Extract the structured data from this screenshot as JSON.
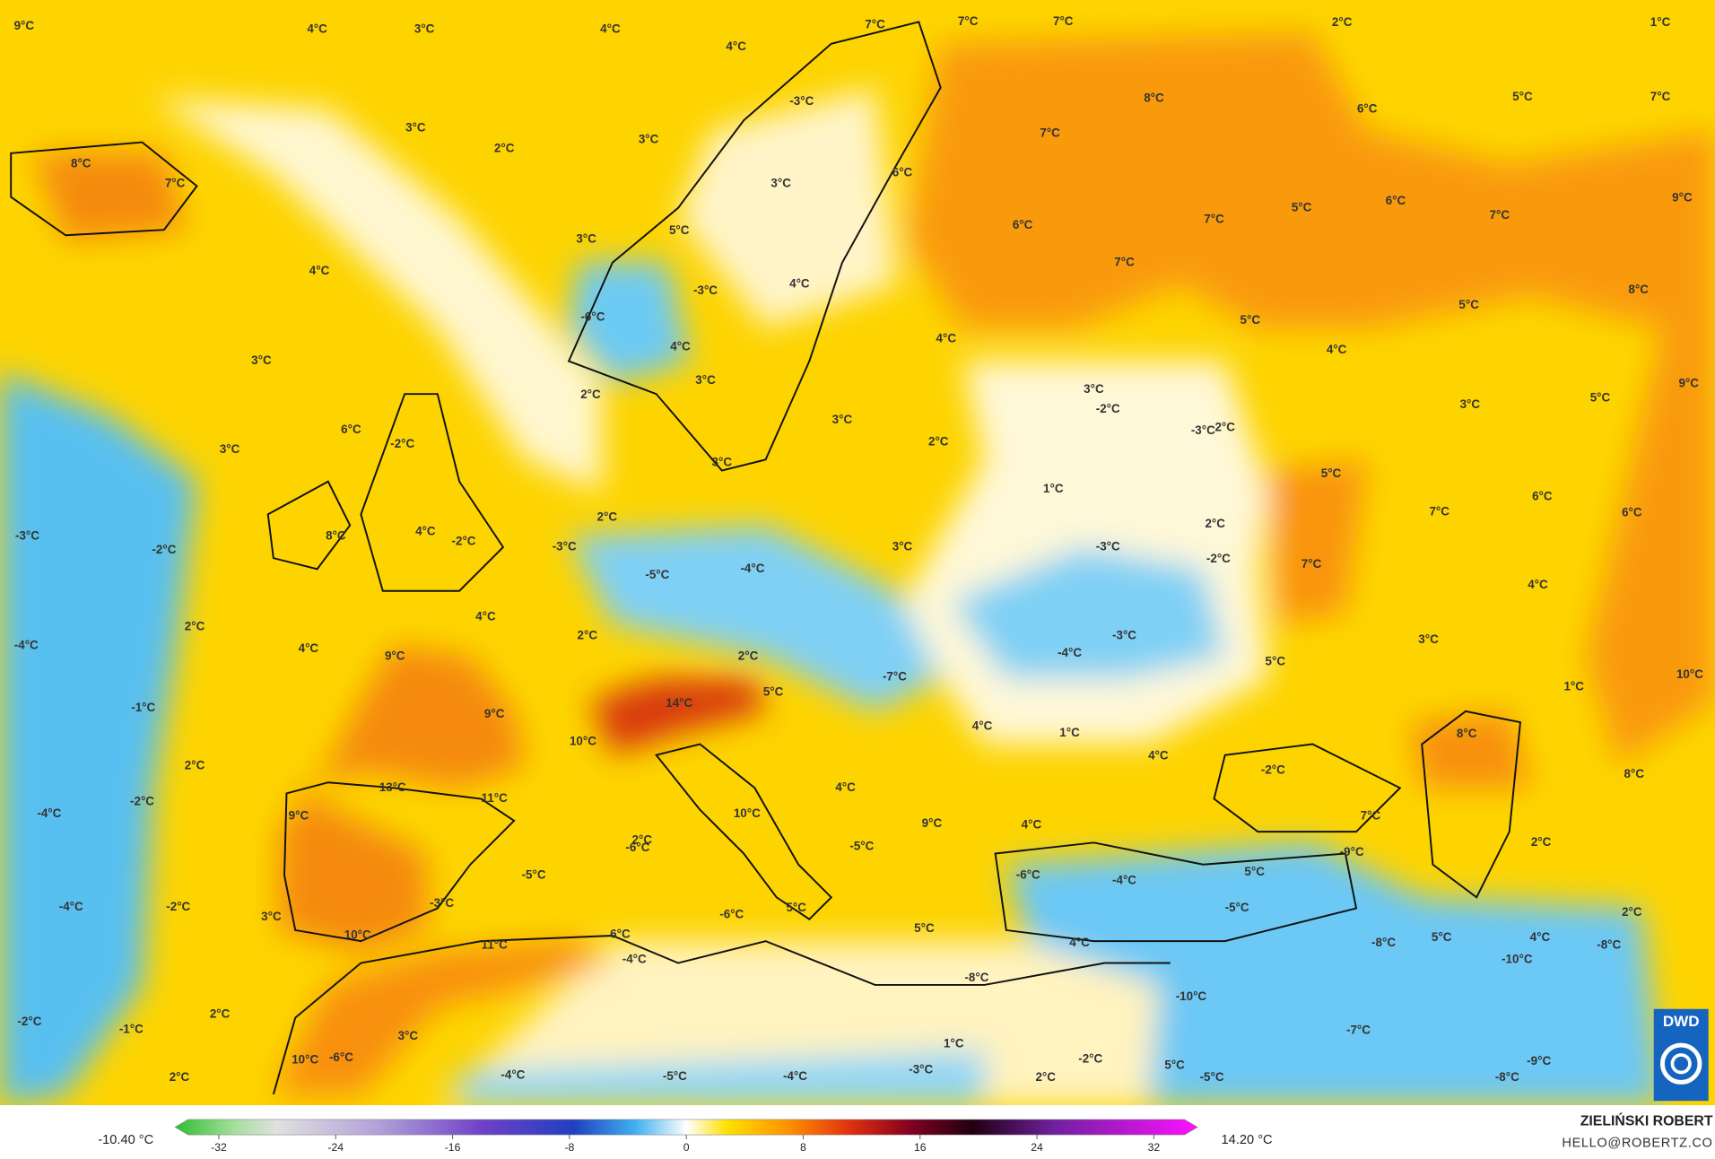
{
  "labels": [
    "9°C",
    "4°C",
    "3°C",
    "4°C",
    "4°C",
    "7°C",
    "7°C",
    "7°C",
    "2°C",
    "1°C",
    "-3°C",
    "8°C",
    "6°C",
    "5°C",
    "7°C",
    "3°C",
    "2°C",
    "3°C",
    "8°C",
    "7°C",
    "7°C",
    "6°C",
    "3°C",
    "5°C",
    "6°C",
    "7°C",
    "9°C",
    "7°C",
    "6°C",
    "5°C",
    "3°C",
    "4°C",
    "7°C",
    "-3°C",
    "4°C",
    "8°C",
    "5°C",
    "-6°C",
    "5°C",
    "4°C",
    "4°C",
    "4°C",
    "3°C",
    "3°C",
    "2°C",
    "3°C",
    "-2°C",
    "9°C",
    "3°C",
    "5°C",
    "3°C",
    "-3°C",
    "2°C",
    "6°C",
    "-2°C",
    "3°C",
    "2°C",
    "3°C",
    "5°C",
    "1°C",
    "6°C",
    "7°C",
    "6°C",
    "2°C",
    "2°C",
    "-3°C",
    "8°C",
    "4°C",
    "-2°C",
    "-3°C",
    "-2°C",
    "3°C",
    "-3°C",
    "-2°C",
    "-5°C",
    "-4°C",
    "7°C",
    "4°C",
    "2°C",
    "4°C",
    "2°C",
    "3°C",
    "-3°C",
    "-4°C",
    "4°C",
    "-4°C",
    "2°C",
    "9°C",
    "5°C",
    "10°C",
    "-7°C",
    "5°C",
    "14°C",
    "1°C",
    "-1°C",
    "9°C",
    "4°C",
    "1°C",
    "4°C",
    "10°C",
    "8°C",
    "2°C",
    "-2°C",
    "8°C",
    "13°C",
    "11°C",
    "-2°C",
    "4°C",
    "-4°C",
    "9°C",
    "10°C",
    "9°C",
    "4°C",
    "7°C",
    "2°C",
    "2°C",
    "-6°C",
    "-5°C",
    "-9°C",
    "-6°C",
    "-4°C",
    "5°C",
    "-5°C",
    "-3°C",
    "-4°C",
    "-2°C",
    "3°C",
    "-6°C",
    "5°C",
    "-5°C",
    "2°C",
    "5°C",
    "10°C",
    "6°C",
    "5°C",
    "-8°C",
    "4°C",
    "-8°C",
    "11°C",
    "4°C",
    "-4°C",
    "-10°C",
    "-8°C",
    "-10°C",
    "2°C",
    "-2°C",
    "-1°C",
    "3°C",
    "-7°C",
    "1°C",
    "10°C",
    "-6°C",
    "-2°C",
    "5°C",
    "-9°C",
    "2°C",
    "-4°C",
    "-5°C",
    "-4°C",
    "-3°C",
    "2°C",
    "-5°C",
    "-8°C"
  ],
  "colorbar": {
    "min_label": "-10.40 °C",
    "max_label": "14.20 °C",
    "range": [
      -35,
      35
    ],
    "ticks": [
      -32,
      -24,
      -16,
      -8,
      0,
      8,
      16,
      24,
      32
    ]
  },
  "credit": {
    "author": "ZIELIŃSKI ROBERT",
    "email": "HELLO@ROBERTZ.CO",
    "logo": "DWD"
  }
}
